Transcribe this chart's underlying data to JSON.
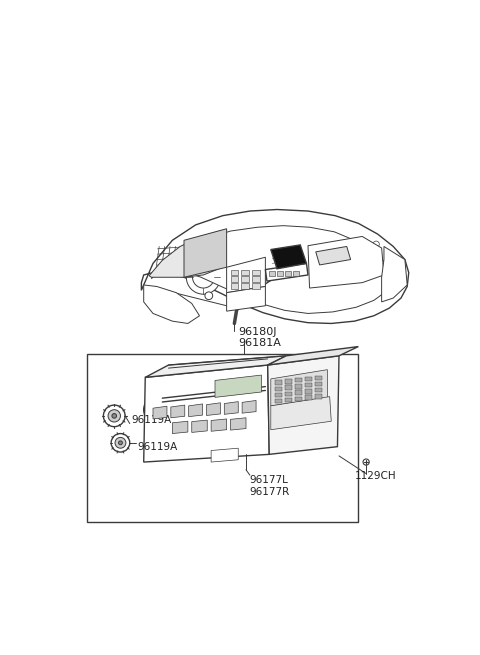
{
  "background_color": "#ffffff",
  "line_color": "#3a3a3a",
  "label_color": "#222222",
  "dark_fill": "#111111",
  "gray_fill": "#888888",
  "figsize": [
    4.8,
    6.55
  ],
  "dpi": 100,
  "labels": {
    "96180J_96181A": "96180J\n96181A",
    "96119A_top": "96119A",
    "96119A_bot": "96119A",
    "96177": "96177L\n96177R",
    "1129CH": "1129CH"
  }
}
